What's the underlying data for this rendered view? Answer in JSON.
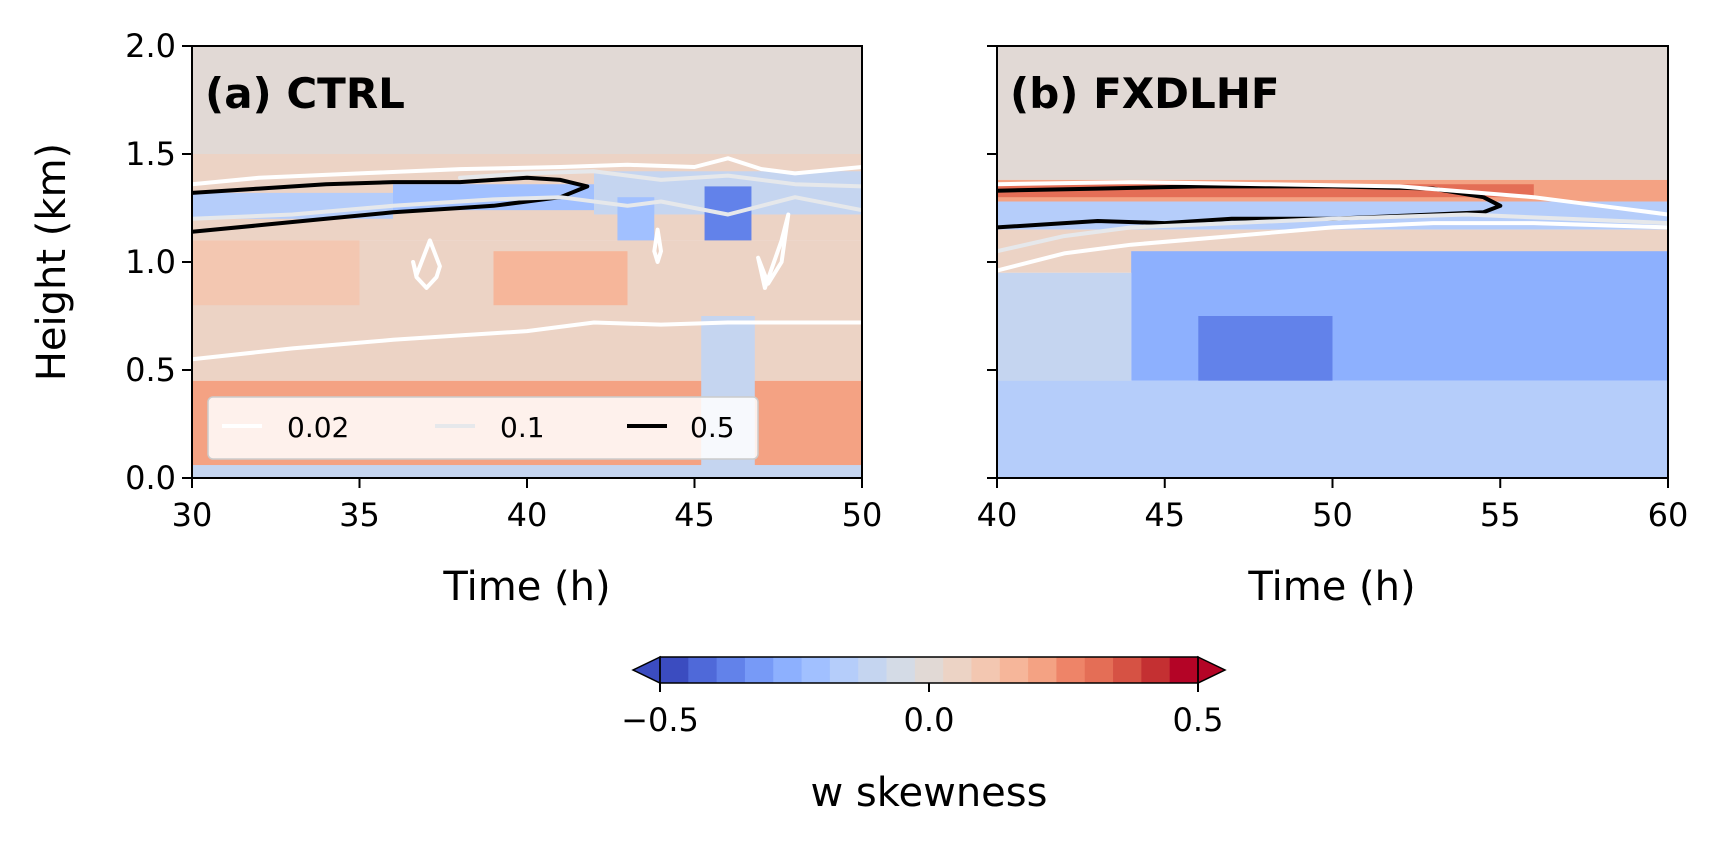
{
  "chart_data": {
    "type": "heatmap",
    "colorbar": {
      "label": "w skewness",
      "range": [
        -0.5,
        0.5
      ],
      "ticks": [
        "−0.5",
        "0.0",
        "0.5"
      ],
      "extend": "both",
      "colormap": "coolwarm",
      "colors": [
        "#3b4cc0",
        "#4f69d9",
        "#6282ea",
        "#779af7",
        "#8db0fe",
        "#a1c0ff",
        "#b5cdfa",
        "#c5d5f0",
        "#d4dbe6",
        "#e1d9d5",
        "#ecd3c5",
        "#f3c7b1",
        "#f6b69a",
        "#f4a283",
        "#ee8468",
        "#e46e56",
        "#d65244",
        "#c43032",
        "#b40426"
      ]
    },
    "contours": {
      "legend": [
        {
          "label": "0.02",
          "color": "#ffffff"
        },
        {
          "label": "0.1",
          "color": "#e6e8eb"
        },
        {
          "label": "0.5",
          "color": "#000000"
        }
      ]
    },
    "panels": [
      {
        "title": "(a) CTRL",
        "xlabel": "Time (h)",
        "ylabel": "Height (km)",
        "xlim": [
          30,
          50
        ],
        "ylim": [
          0,
          2.0
        ],
        "xticks": [
          "30",
          "35",
          "40",
          "45",
          "50"
        ],
        "yticks": [
          "0.0",
          "0.5",
          "1.0",
          "1.5",
          "2.0"
        ],
        "contour_lines": [
          {
            "level": "0.5",
            "x": [
              30,
              32,
              34,
              36,
              38,
              39,
              40,
              41,
              41.8,
              41,
              40,
              39,
              38,
              36,
              34,
              32,
              30
            ],
            "y": [
              1.32,
              1.34,
              1.36,
              1.37,
              1.37,
              1.38,
              1.39,
              1.38,
              1.35,
              1.3,
              1.28,
              1.26,
              1.25,
              1.23,
              1.2,
              1.17,
              1.14
            ]
          },
          {
            "level": "0.02",
            "x": [
              30,
              32,
              35,
              38,
              41,
              43,
              45,
              46,
              47,
              48,
              50
            ],
            "y": [
              1.36,
              1.39,
              1.41,
              1.43,
              1.44,
              1.45,
              1.44,
              1.48,
              1.43,
              1.41,
              1.44
            ]
          },
          {
            "level": "0.02",
            "x": [
              30,
              33,
              36,
              38,
              39,
              40,
              42,
              44,
              46,
              48,
              50
            ],
            "y": [
              0.55,
              0.6,
              0.64,
              0.66,
              0.67,
              0.68,
              0.72,
              0.71,
              0.72,
              0.72,
              0.72
            ]
          },
          {
            "level": "0.02",
            "x": [
              36.7,
              37.1,
              37.4,
              37.3,
              37,
              36.7,
              36.6,
              36.7
            ],
            "y": [
              0.94,
              1.1,
              0.98,
              0.93,
              0.88,
              0.93,
              1.0,
              0.94
            ]
          },
          {
            "level": "0.02",
            "x": [
              47.1,
              47.6,
              47.8,
              47.6,
              47.2,
              46.9,
              47.1
            ],
            "y": [
              0.88,
              1.1,
              1.22,
              1.0,
              0.9,
              1.02,
              0.88
            ]
          },
          {
            "level": "0.02",
            "x": [
              43.8,
              43.9,
              44,
              43.9,
              43.8
            ],
            "y": [
              1.05,
              1.15,
              1.05,
              1.0,
              1.05
            ]
          },
          {
            "level": "0.1",
            "x": [
              30,
              33,
              36,
              39,
              41,
              43,
              44,
              46,
              48,
              50
            ],
            "y": [
              1.2,
              1.22,
              1.26,
              1.29,
              1.3,
              1.26,
              1.28,
              1.22,
              1.3,
              1.24
            ]
          },
          {
            "level": "0.1",
            "x": [
              38,
              40,
              42,
              44,
              46,
              48,
              50
            ],
            "y": [
              1.39,
              1.41,
              1.42,
              1.38,
              1.4,
              1.36,
              1.35
            ]
          }
        ],
        "cells": [
          {
            "x": [
              30,
              50
            ],
            "y": [
              1.5,
              2.0
            ],
            "value": 0.02
          },
          {
            "x": [
              30,
              50
            ],
            "y": [
              1.1,
              1.5
            ],
            "value": 0.04
          },
          {
            "x": [
              30,
              36
            ],
            "y": [
              1.2,
              1.32
            ],
            "value": -0.18
          },
          {
            "x": [
              36,
              42
            ],
            "y": [
              1.24,
              1.36
            ],
            "value": -0.22
          },
          {
            "x": [
              42,
              50
            ],
            "y": [
              1.22,
              1.42
            ],
            "value": -0.12
          },
          {
            "x": [
              45.3,
              46.7
            ],
            "y": [
              0.9,
              1.35
            ],
            "value": -0.35
          },
          {
            "x": [
              42.7,
              43.8
            ],
            "y": [
              0.9,
              1.3
            ],
            "value": -0.22
          },
          {
            "x": [
              30,
              50
            ],
            "y": [
              0.75,
              1.1
            ],
            "value": 0.06
          },
          {
            "x": [
              39,
              43
            ],
            "y": [
              0.8,
              1.05
            ],
            "value": 0.16
          },
          {
            "x": [
              30,
              35
            ],
            "y": [
              0.8,
              1.1
            ],
            "value": 0.08
          },
          {
            "x": [
              30,
              50
            ],
            "y": [
              0.45,
              0.75
            ],
            "value": 0.04
          },
          {
            "x": [
              30,
              50
            ],
            "y": [
              0.0,
              0.45
            ],
            "value": 0.2
          },
          {
            "x": [
              45.2,
              46.8
            ],
            "y": [
              0.0,
              0.75
            ],
            "value": -0.08
          },
          {
            "x": [
              30,
              50
            ],
            "y": [
              0.0,
              0.06
            ],
            "value": -0.08
          }
        ]
      },
      {
        "title": "(b) FXDLHF",
        "xlabel": "Time (h)",
        "ylabel": "",
        "xlim": [
          40,
          60
        ],
        "ylim": [
          0,
          2.0
        ],
        "xticks": [
          "40",
          "45",
          "50",
          "55",
          "60"
        ],
        "yticks": [],
        "contour_lines": [
          {
            "level": "0.5",
            "x": [
              40,
              43,
              46,
              50,
              53,
              54.5,
              55,
              54.5,
              53,
              50,
              47,
              45,
              43,
              40
            ],
            "y": [
              1.33,
              1.34,
              1.35,
              1.35,
              1.34,
              1.3,
              1.26,
              1.23,
              1.22,
              1.2,
              1.2,
              1.18,
              1.19,
              1.16
            ]
          },
          {
            "level": "0.02",
            "x": [
              40,
              44,
              48,
              52,
              56,
              58,
              60
            ],
            "y": [
              1.36,
              1.37,
              1.36,
              1.35,
              1.3,
              1.26,
              1.22
            ]
          },
          {
            "level": "0.02",
            "x": [
              40,
              42,
              44,
              47,
              50,
              53,
              56,
              58,
              60
            ],
            "y": [
              0.96,
              1.04,
              1.08,
              1.12,
              1.16,
              1.18,
              1.18,
              1.17,
              1.16
            ]
          },
          {
            "level": "0.1",
            "x": [
              40,
              42,
              44,
              47,
              50,
              54,
              57,
              60
            ],
            "y": [
              1.05,
              1.12,
              1.16,
              1.18,
              1.2,
              1.22,
              1.2,
              1.18
            ]
          }
        ],
        "cells": [
          {
            "x": [
              40,
              60
            ],
            "y": [
              1.38,
              2.0
            ],
            "value": 0.02
          },
          {
            "x": [
              40,
              60
            ],
            "y": [
              1.28,
              1.38
            ],
            "value": 0.2
          },
          {
            "x": [
              40,
              56
            ],
            "y": [
              1.3,
              1.36
            ],
            "value": 0.32
          },
          {
            "x": [
              40,
              60
            ],
            "y": [
              1.15,
              1.28
            ],
            "value": -0.15
          },
          {
            "x": [
              40,
              60
            ],
            "y": [
              0.95,
              1.15
            ],
            "value": 0.04
          },
          {
            "x": [
              44,
              60
            ],
            "y": [
              0.45,
              1.05
            ],
            "value": -0.28
          },
          {
            "x": [
              46,
              50
            ],
            "y": [
              0.45,
              0.75
            ],
            "value": -0.36
          },
          {
            "x": [
              40,
              44
            ],
            "y": [
              0.2,
              0.95
            ],
            "value": -0.1
          },
          {
            "x": [
              40,
              60
            ],
            "y": [
              0.0,
              0.45
            ],
            "value": -0.14
          }
        ]
      }
    ]
  }
}
